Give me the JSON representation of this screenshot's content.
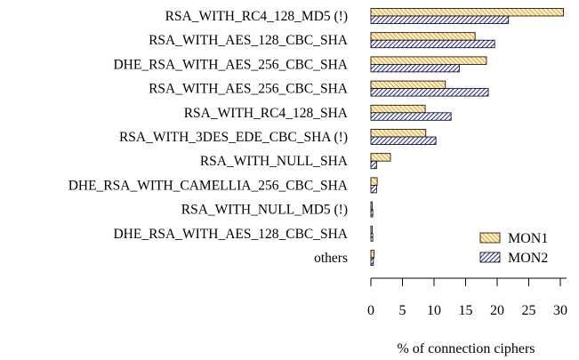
{
  "chart_data": {
    "type": "bar",
    "orientation": "horizontal",
    "categories": [
      "RSA_WITH_RC4_128_MD5 (!)",
      "RSA_WITH_AES_128_CBC_SHA",
      "DHE_RSA_WITH_AES_256_CBC_SHA",
      "RSA_WITH_AES_256_CBC_SHA",
      "RSA_WITH_RC4_128_SHA",
      "RSA_WITH_3DES_EDE_CBC_SHA (!)",
      "RSA_WITH_NULL_SHA",
      "DHE_RSA_WITH_CAMELLIA_256_CBC_SHA",
      "RSA_WITH_NULL_MD5 (!)",
      "DHE_RSA_WITH_AES_128_CBC_SHA",
      "others"
    ],
    "series": [
      {
        "name": "MON1",
        "color": "#e8a33c",
        "pattern": "hatch-backslash",
        "values": [
          30.5,
          16.5,
          18.3,
          11.8,
          8.6,
          8.7,
          3.1,
          1.0,
          0.2,
          0.2,
          0.5
        ]
      },
      {
        "name": "MON2",
        "color": "#2a2aa0",
        "pattern": "hatch-slash",
        "values": [
          21.8,
          19.6,
          14.0,
          18.6,
          12.7,
          10.3,
          0.9,
          0.9,
          0.3,
          0.3,
          0.4
        ]
      }
    ],
    "xlabel": "% of connection ciphers",
    "ylabel": "",
    "xlim": [
      0,
      31
    ],
    "xticks": [
      0,
      5,
      10,
      15,
      20,
      25,
      30
    ],
    "grid": false,
    "legend_position": "bottom-right"
  }
}
